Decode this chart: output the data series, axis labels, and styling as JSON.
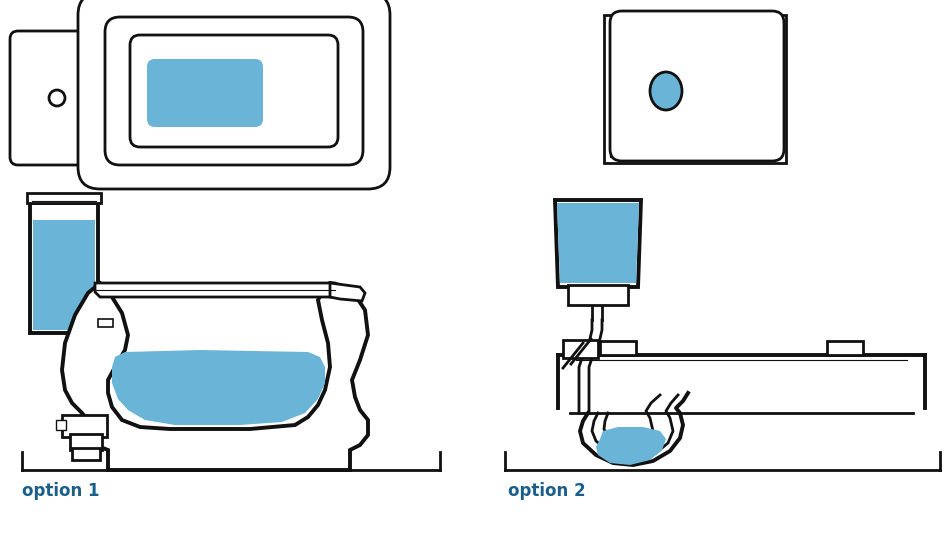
{
  "bg_color": "#ffffff",
  "line_color": "#111111",
  "blue_fill": "#6ab4d8",
  "blue_text": "#1a5f8a",
  "option1_label": "option 1",
  "option2_label": "option 2",
  "lw": 2.0,
  "lwt": 2.8
}
